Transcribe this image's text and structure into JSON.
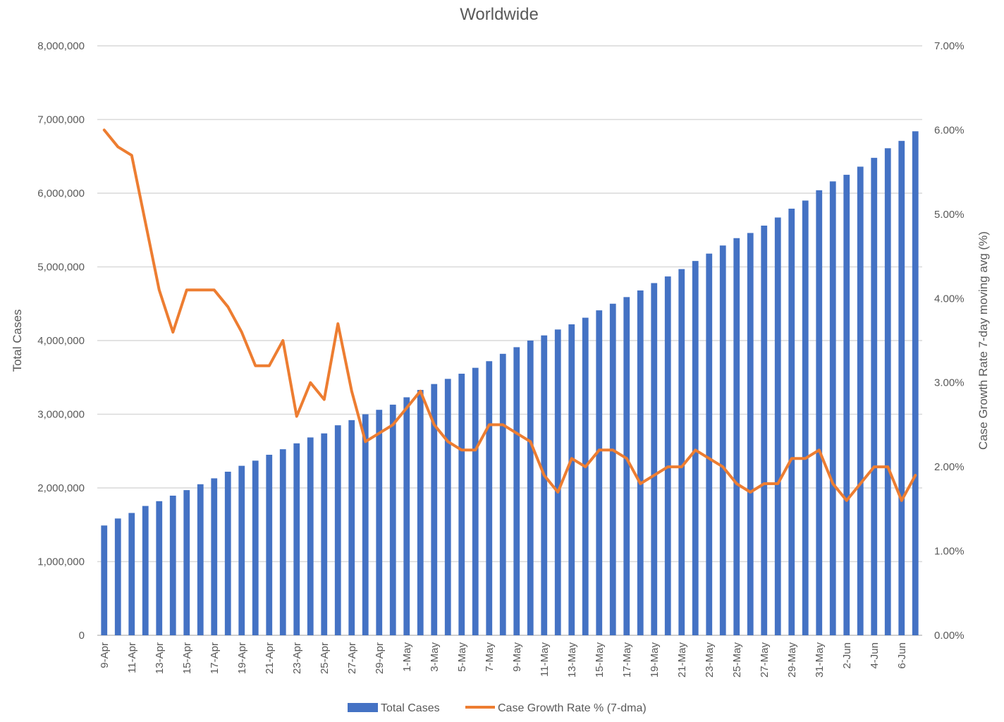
{
  "chart_data": {
    "type": "bar",
    "title": "Worldwide",
    "ylabel": "Total Cases",
    "y2label": "Case Growth Rate 7-day moving avg (%)",
    "ylim": [
      0,
      8000000
    ],
    "y2lim": [
      0,
      7
    ],
    "yticks": [
      "0",
      "1,000,000",
      "2,000,000",
      "3,000,000",
      "4,000,000",
      "5,000,000",
      "6,000,000",
      "7,000,000",
      "8,000,000"
    ],
    "y2ticks": [
      "0.00%",
      "1.00%",
      "2.00%",
      "3.00%",
      "4.00%",
      "5.00%",
      "6.00%",
      "7.00%"
    ],
    "grid": true,
    "legend_position": "bottom",
    "categories": [
      "9-Apr",
      "10-Apr",
      "11-Apr",
      "12-Apr",
      "13-Apr",
      "14-Apr",
      "15-Apr",
      "16-Apr",
      "17-Apr",
      "18-Apr",
      "19-Apr",
      "20-Apr",
      "21-Apr",
      "22-Apr",
      "23-Apr",
      "24-Apr",
      "25-Apr",
      "26-Apr",
      "27-Apr",
      "28-Apr",
      "29-Apr",
      "30-Apr",
      "1-May",
      "2-May",
      "3-May",
      "4-May",
      "5-May",
      "6-May",
      "7-May",
      "8-May",
      "9-May",
      "10-May",
      "11-May",
      "12-May",
      "13-May",
      "14-May",
      "15-May",
      "16-May",
      "17-May",
      "18-May",
      "19-May",
      "20-May",
      "21-May",
      "22-May",
      "23-May",
      "24-May",
      "25-May",
      "26-May",
      "27-May",
      "28-May",
      "29-May",
      "30-May",
      "31-May",
      "1-Jun",
      "2-Jun",
      "3-Jun",
      "4-Jun",
      "5-Jun",
      "6-Jun",
      "7-Jun"
    ],
    "xtick_labels": [
      "9-Apr",
      "11-Apr",
      "13-Apr",
      "15-Apr",
      "17-Apr",
      "19-Apr",
      "21-Apr",
      "23-Apr",
      "25-Apr",
      "27-Apr",
      "29-Apr",
      "1-May",
      "3-May",
      "5-May",
      "7-May",
      "9-May",
      "11-May",
      "13-May",
      "15-May",
      "17-May",
      "19-May",
      "21-May",
      "23-May",
      "25-May",
      "27-May",
      "29-May",
      "31-May",
      "2-Jun",
      "4-Jun",
      "6-Jun"
    ],
    "series": [
      {
        "name": "Total Cases",
        "type": "bar",
        "axis": "left",
        "color": "#4472C4",
        "values": [
          1490000,
          1585000,
          1660000,
          1755000,
          1820000,
          1895000,
          1970000,
          2050000,
          2130000,
          2220000,
          2300000,
          2370000,
          2450000,
          2525000,
          2605000,
          2685000,
          2740000,
          2850000,
          2920000,
          3000000,
          3060000,
          3130000,
          3230000,
          3330000,
          3410000,
          3480000,
          3550000,
          3630000,
          3720000,
          3820000,
          3910000,
          4000000,
          4070000,
          4150000,
          4220000,
          4310000,
          4410000,
          4500000,
          4590000,
          4680000,
          4780000,
          4870000,
          4970000,
          5080000,
          5180000,
          5290000,
          5390000,
          5460000,
          5560000,
          5670000,
          5790000,
          5900000,
          6040000,
          6160000,
          6250000,
          6360000,
          6480000,
          6610000,
          6710000,
          6840000
        ]
      },
      {
        "name": "Case Growth Rate % (7-dma)",
        "type": "line",
        "axis": "right",
        "color": "#ED7D31",
        "values": [
          6.0,
          5.8,
          5.7,
          4.9,
          4.1,
          3.6,
          4.1,
          4.1,
          4.1,
          3.9,
          3.6,
          3.2,
          3.2,
          3.5,
          2.6,
          3.0,
          2.8,
          3.7,
          2.9,
          2.3,
          2.4,
          2.5,
          2.7,
          2.9,
          2.5,
          2.3,
          2.2,
          2.2,
          2.5,
          2.5,
          2.4,
          2.3,
          1.9,
          1.7,
          2.1,
          2.0,
          2.2,
          2.2,
          2.1,
          1.8,
          1.9,
          2.0,
          2.0,
          2.2,
          2.1,
          2.0,
          1.8,
          1.7,
          1.8,
          1.8,
          2.1,
          2.1,
          2.2,
          1.8,
          1.6,
          1.8,
          2.0,
          2.0,
          1.6,
          1.9
        ]
      }
    ]
  }
}
